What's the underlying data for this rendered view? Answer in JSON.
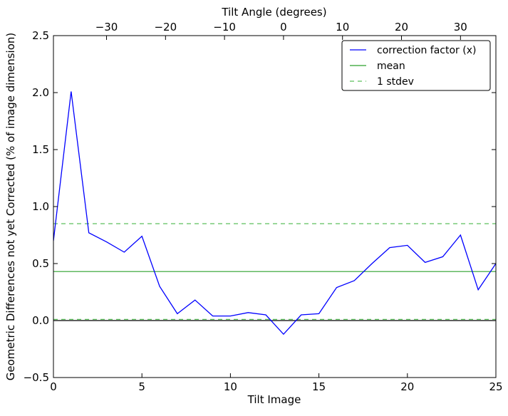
{
  "chart_data": {
    "type": "line",
    "xlabel": "Tilt Image",
    "ylabel": "Geometric Differences not yet Corrected (% of image dimension)",
    "top_xlabel": "Tilt Angle (degrees)",
    "xlim": [
      0,
      25
    ],
    "ylim": [
      -0.5,
      2.5
    ],
    "grid": false,
    "legend_position": "top-right",
    "x_ticks": [
      0,
      5,
      10,
      15,
      20,
      25
    ],
    "x_tick_labels": [
      "0",
      "5",
      "10",
      "15",
      "20",
      "25"
    ],
    "y_ticks": [
      -0.5,
      0.0,
      0.5,
      1.0,
      1.5,
      2.0,
      2.5
    ],
    "y_tick_labels": [
      "−0.5",
      "0.0",
      "0.5",
      "1.0",
      "1.5",
      "2.0",
      "2.5"
    ],
    "top_axis": {
      "xlim": [
        -39,
        36
      ],
      "ticks": [
        -30,
        -20,
        -10,
        0,
        10,
        20,
        30
      ],
      "tick_labels": [
        "−30",
        "−20",
        "−10",
        "0",
        "10",
        "20",
        "30"
      ]
    },
    "series": [
      {
        "name": "correction factor (x)",
        "color": "#0000ff",
        "style": "solid",
        "x": [
          0,
          1,
          2,
          3,
          4,
          5,
          6,
          7,
          8,
          9,
          10,
          11,
          12,
          13,
          14,
          15,
          16,
          17,
          18,
          19,
          20,
          21,
          22,
          23,
          24,
          25
        ],
        "values": [
          0.7,
          2.01,
          0.77,
          0.69,
          0.6,
          0.74,
          0.3,
          0.06,
          0.18,
          0.04,
          0.04,
          0.07,
          0.05,
          -0.12,
          0.05,
          0.06,
          0.29,
          0.35,
          0.5,
          0.64,
          0.66,
          0.51,
          0.56,
          0.75,
          0.27,
          0.5
        ]
      },
      {
        "name": "mean",
        "color": "#2ca02c",
        "style": "solid",
        "value": 0.43
      },
      {
        "name": "1 stdev",
        "color": "#5cbf5c",
        "style": "dashed",
        "values_at": [
          0.85,
          0.01
        ]
      }
    ],
    "reference_line": {
      "value": 0.0,
      "color": "#000000"
    }
  }
}
